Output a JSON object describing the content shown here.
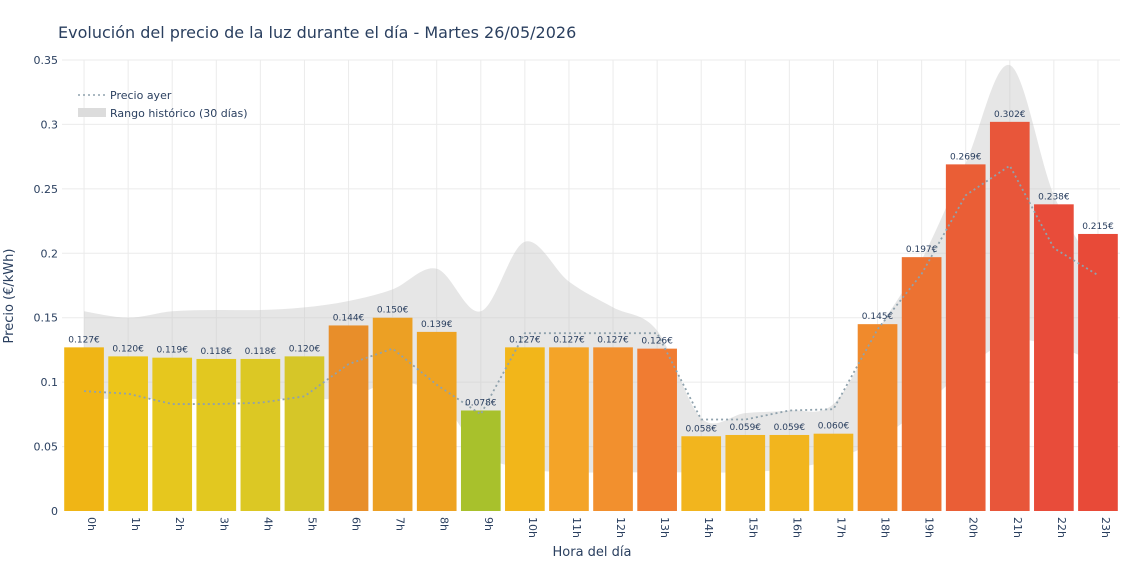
{
  "chart_data": {
    "type": "bar",
    "title": "Evolución del precio de la luz durante el día - Martes 26/05/2026",
    "xlabel": "Hora del día",
    "ylabel": "Precio (€/kWh)",
    "ylim": [
      0,
      0.35
    ],
    "yticks": [
      0,
      0.05,
      0.1,
      0.15,
      0.2,
      0.25,
      0.3,
      0.35
    ],
    "ytick_labels": [
      "0",
      "0.05",
      "0.1",
      "0.15",
      "0.2",
      "0.25",
      "0.3",
      "0.35"
    ],
    "categories": [
      "0h",
      "1h",
      "2h",
      "3h",
      "4h",
      "5h",
      "6h",
      "7h",
      "8h",
      "9h",
      "10h",
      "11h",
      "12h",
      "13h",
      "14h",
      "15h",
      "16h",
      "17h",
      "18h",
      "19h",
      "20h",
      "21h",
      "22h",
      "23h"
    ],
    "values": [
      0.127,
      0.12,
      0.119,
      0.118,
      0.118,
      0.12,
      0.144,
      0.15,
      0.139,
      0.078,
      0.127,
      0.127,
      0.127,
      0.126,
      0.058,
      0.059,
      0.059,
      0.06,
      0.145,
      0.197,
      0.269,
      0.302,
      0.238,
      0.215
    ],
    "value_labels": [
      "0.127€",
      "0.120€",
      "0.119€",
      "0.118€",
      "0.118€",
      "0.120€",
      "0.144€",
      "0.150€",
      "0.139€",
      "0.078€",
      "0.127€",
      "0.127€",
      "0.127€",
      "0.126€",
      "0.058€",
      "0.059€",
      "0.059€",
      "0.060€",
      "0.145€",
      "0.197€",
      "0.269€",
      "0.302€",
      "0.238€",
      "0.215€"
    ],
    "bar_colors": [
      "#f0b515",
      "#ecc51a",
      "#e6c71e",
      "#e2c820",
      "#dcc824",
      "#d6c628",
      "#e88e2a",
      "#eca024",
      "#eea322",
      "#a8c12c",
      "#f2b61a",
      "#f4a428",
      "#f2902e",
      "#f07c32",
      "#f2b51e",
      "#f2b51e",
      "#f2b51e",
      "#f2b51e",
      "#f08a2c",
      "#ec7232",
      "#ea5e36",
      "#e8563a",
      "#e84c3a",
      "#e84a38"
    ],
    "series": [
      {
        "name": "Precio ayer",
        "type": "line",
        "style": "dotted",
        "color": "#8fa2ad",
        "values": [
          0.093,
          0.091,
          0.083,
          0.083,
          0.084,
          0.089,
          0.114,
          0.126,
          0.098,
          0.075,
          0.138,
          0.138,
          0.138,
          0.138,
          0.071,
          0.071,
          0.078,
          0.079,
          0.141,
          0.184,
          0.245,
          0.268,
          0.204,
          0.183
        ]
      },
      {
        "name": "Rango histórico (30 días)",
        "type": "band",
        "color": "#c8c8c8",
        "upper": [
          0.155,
          0.15,
          0.155,
          0.156,
          0.156,
          0.158,
          0.163,
          0.172,
          0.188,
          0.155,
          0.209,
          0.178,
          0.158,
          0.14,
          0.072,
          0.076,
          0.078,
          0.083,
          0.14,
          0.195,
          0.27,
          0.346,
          0.245,
          0.185
        ],
        "lower": [
          0.087,
          0.087,
          0.087,
          0.087,
          0.087,
          0.087,
          0.088,
          0.1,
          0.09,
          0.045,
          0.033,
          0.03,
          0.03,
          0.03,
          0.03,
          0.03,
          0.033,
          0.04,
          0.055,
          0.08,
          0.11,
          0.132,
          0.128,
          0.115
        ]
      }
    ],
    "legend_position": "top-left",
    "grid": true
  }
}
